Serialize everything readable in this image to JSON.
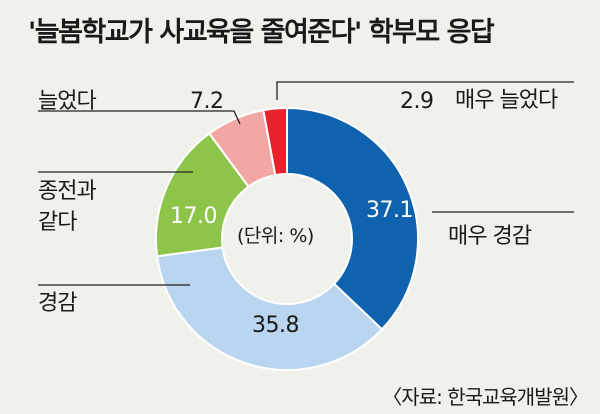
{
  "title": "'늘봄학교가 사교육을 줄여준다' 학부모 응답",
  "unit_label": "(단위: %)",
  "source": "〈자료: 한국교육개발원〉",
  "colors": {
    "매우 늘었다": "#e8222a",
    "매우 경감": "#0f62ad",
    "경감": "#b9d5ef",
    "종전과 같다": "#8dc449",
    "늘었다": "#f3a7a4"
  },
  "chart_data": {
    "type": "pie",
    "donut": true,
    "unit": "%",
    "title": "'늘봄학교가 사교육을 줄여준다' 학부모 응답",
    "slices": [
      {
        "label": "매우 늘었다",
        "value": 2.9,
        "value_label": "2.9"
      },
      {
        "label": "매우 경감",
        "value": 37.1,
        "value_label": "37.1"
      },
      {
        "label": "경감",
        "value": 35.8,
        "value_label": "35.8"
      },
      {
        "label": "종전과 같다",
        "value": 17.0,
        "value_label": "17.0"
      },
      {
        "label": "늘었다",
        "value": 7.2,
        "value_label": "7.2"
      }
    ]
  }
}
